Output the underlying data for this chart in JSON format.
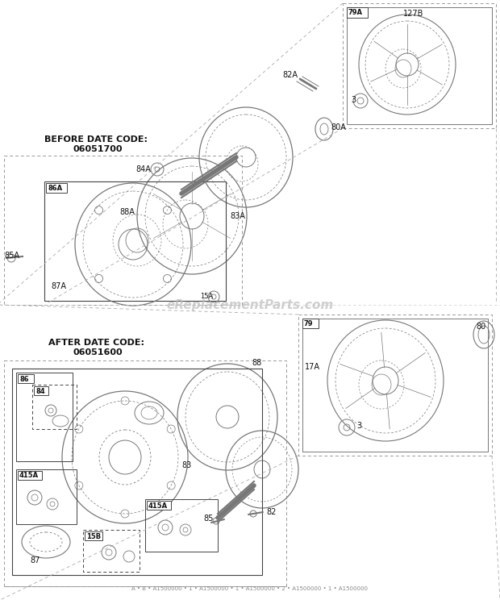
{
  "bg_color": "#ffffff",
  "line_color": "#444444",
  "text_color": "#111111",
  "gray_color": "#777777",
  "light_gray": "#aaaaaa",
  "watermark": "eReplacementParts.com",
  "watermark_color": "#bbbbbb",
  "before_title_line1": "BEFORE DATE CODE:",
  "before_title_line2": "06051700",
  "after_title_line1": "AFTER DATE CODE:",
  "after_title_line2": "06051600",
  "footer": "A • B • A1500000 • 1 • A1500000 • 1 • A1500000 • 2 • A1500000 • 1 • A1500000"
}
